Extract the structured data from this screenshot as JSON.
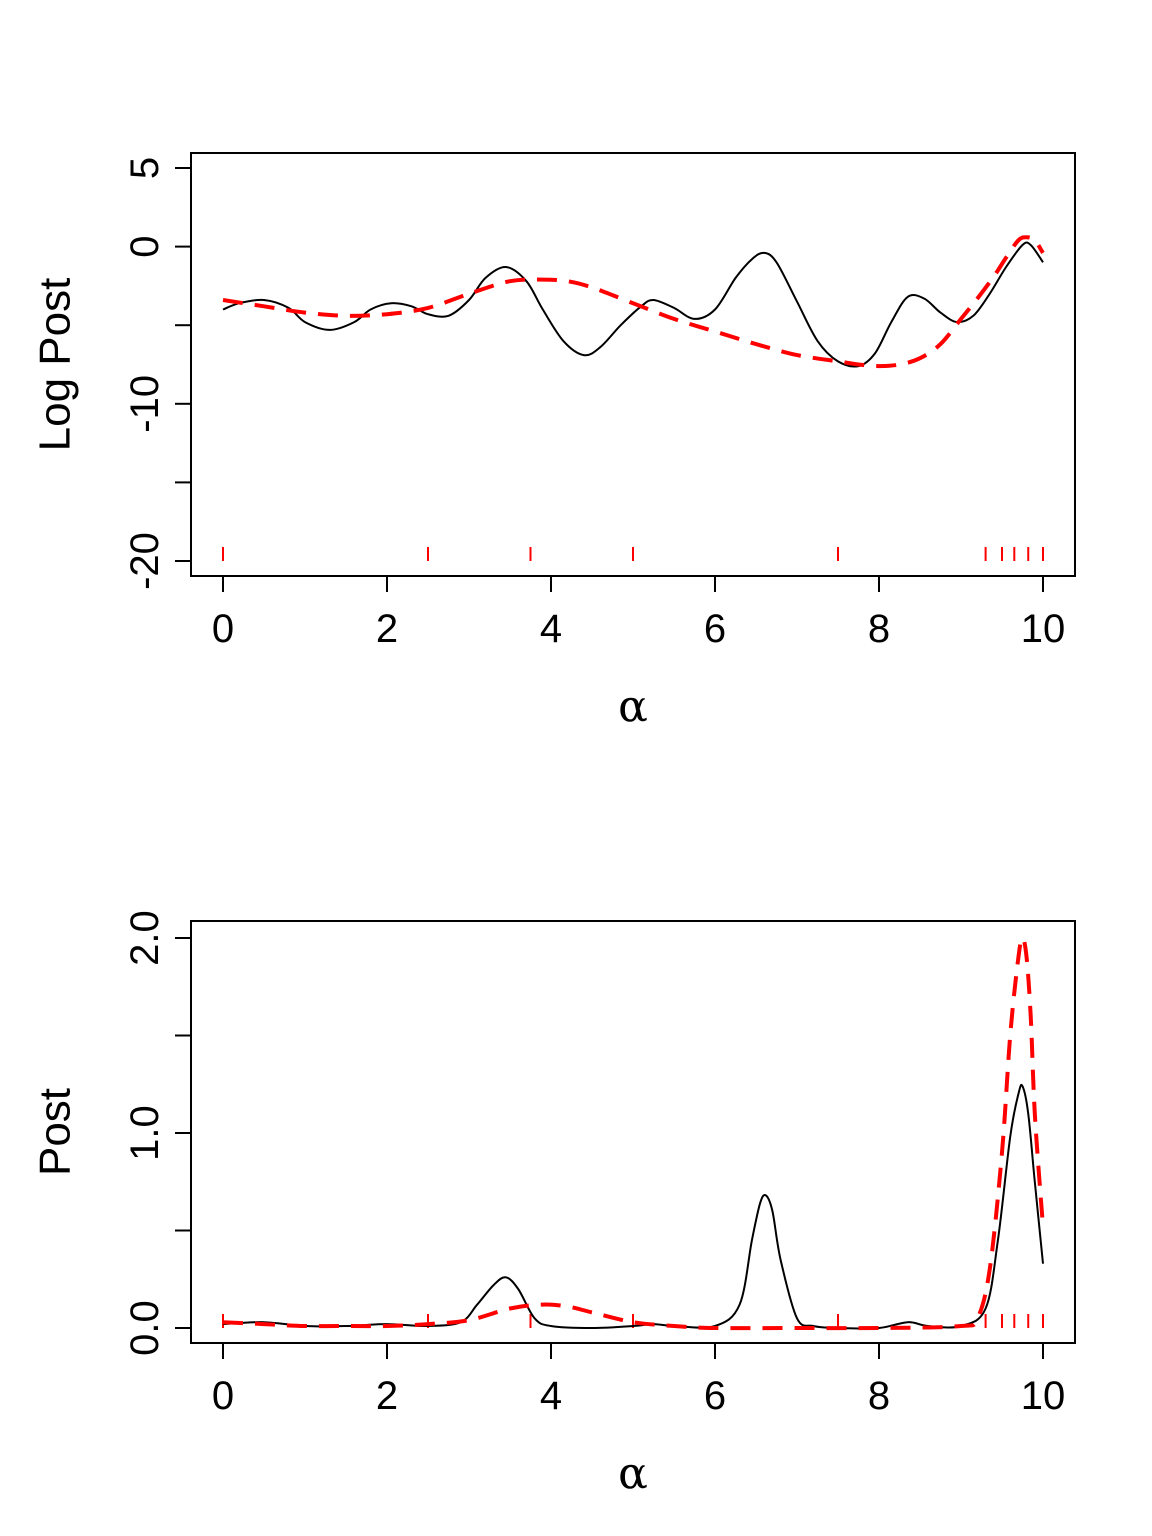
{
  "chart_data": [
    {
      "type": "line",
      "xlabel": "α",
      "ylabel": "Log Post",
      "xlim": [
        0,
        10
      ],
      "ylim": [
        -20,
        5
      ],
      "xticks": [
        "0",
        "2",
        "4",
        "6",
        "8",
        "10"
      ],
      "yticks": [
        "-20",
        "-10",
        "0",
        "5"
      ],
      "ytick_values": [
        -20,
        -15,
        -10,
        -5,
        0,
        5
      ],
      "rug": [
        0,
        2.5,
        3.75,
        5,
        7.5,
        9.3,
        9.5,
        9.65,
        9.82,
        10
      ],
      "rug_color": "#ff0000",
      "series": [
        {
          "style": "solid",
          "color": "#000000",
          "x": [
            0,
            0.2,
            0.5,
            0.8,
            1.0,
            1.3,
            1.6,
            1.8,
            2.05,
            2.3,
            2.5,
            2.75,
            3.0,
            3.2,
            3.45,
            3.7,
            3.9,
            4.15,
            4.4,
            4.6,
            4.85,
            5.1,
            5.25,
            5.5,
            5.75,
            6.0,
            6.25,
            6.45,
            6.6,
            6.75,
            7.0,
            7.25,
            7.5,
            7.75,
            7.95,
            8.15,
            8.35,
            8.55,
            8.75,
            8.95,
            9.15,
            9.35,
            9.55,
            9.75,
            9.85,
            10.0
          ],
          "y": [
            -4.0,
            -3.6,
            -3.4,
            -3.9,
            -4.8,
            -5.3,
            -4.8,
            -4.0,
            -3.6,
            -3.8,
            -4.3,
            -4.4,
            -3.4,
            -2.0,
            -1.3,
            -2.2,
            -4.0,
            -6.0,
            -6.9,
            -6.4,
            -5.0,
            -3.8,
            -3.4,
            -3.9,
            -4.6,
            -4.0,
            -2.0,
            -0.8,
            -0.4,
            -1.0,
            -3.5,
            -6.0,
            -7.3,
            -7.6,
            -6.8,
            -4.8,
            -3.2,
            -3.3,
            -4.2,
            -4.8,
            -4.4,
            -3.0,
            -1.3,
            0.1,
            0.1,
            -1.0
          ]
        },
        {
          "style": "dashed",
          "color": "#ff0000",
          "x": [
            0,
            0.5,
            1.0,
            1.5,
            2.0,
            2.5,
            3.0,
            3.5,
            3.9,
            4.2,
            4.5,
            5.0,
            5.5,
            6.0,
            6.5,
            7.0,
            7.5,
            7.75,
            8.0,
            8.25,
            8.5,
            8.75,
            9.0,
            9.2,
            9.4,
            9.55,
            9.7,
            9.8,
            9.9,
            10.0
          ],
          "y": [
            -3.4,
            -3.8,
            -4.2,
            -4.4,
            -4.3,
            -3.9,
            -3.0,
            -2.2,
            -2.1,
            -2.2,
            -2.6,
            -3.6,
            -4.6,
            -5.4,
            -6.2,
            -6.9,
            -7.3,
            -7.5,
            -7.6,
            -7.5,
            -7.1,
            -6.2,
            -4.6,
            -3.3,
            -1.9,
            -0.7,
            0.4,
            0.6,
            0.4,
            -0.4
          ]
        }
      ]
    },
    {
      "type": "line",
      "xlabel": "α",
      "ylabel": "Post",
      "xlim": [
        0,
        10
      ],
      "ylim": [
        0,
        2.0
      ],
      "xticks": [
        "0",
        "2",
        "4",
        "6",
        "8",
        "10"
      ],
      "yticks": [
        "0.0",
        "1.0",
        "2.0"
      ],
      "ytick_values": [
        0.0,
        0.5,
        1.0,
        1.5,
        2.0
      ],
      "rug": [
        0,
        2.5,
        3.75,
        5,
        7.5,
        9.3,
        9.5,
        9.65,
        9.82,
        10
      ],
      "rug_color": "#ff0000",
      "series": [
        {
          "style": "solid",
          "color": "#000000",
          "x": [
            0,
            0.5,
            1.0,
            1.5,
            2.0,
            2.5,
            2.9,
            3.1,
            3.3,
            3.45,
            3.6,
            3.8,
            4.0,
            4.5,
            5.0,
            5.25,
            5.5,
            6.0,
            6.3,
            6.45,
            6.55,
            6.62,
            6.7,
            6.8,
            7.0,
            7.2,
            7.5,
            8.0,
            8.35,
            8.6,
            9.0,
            9.3,
            9.45,
            9.6,
            9.7,
            9.75,
            9.82,
            9.9,
            10.0
          ],
          "y": [
            0.02,
            0.03,
            0.01,
            0.01,
            0.02,
            0.01,
            0.03,
            0.12,
            0.22,
            0.26,
            0.2,
            0.05,
            0.01,
            0.0,
            0.01,
            0.02,
            0.01,
            0.01,
            0.12,
            0.45,
            0.64,
            0.68,
            0.6,
            0.35,
            0.05,
            0.01,
            0.0,
            0.0,
            0.03,
            0.01,
            0.01,
            0.1,
            0.45,
            0.98,
            1.2,
            1.24,
            1.1,
            0.75,
            0.33
          ]
        },
        {
          "style": "dashed",
          "color": "#ff0000",
          "x": [
            0,
            0.5,
            1.0,
            1.5,
            2.0,
            2.5,
            3.0,
            3.5,
            3.9,
            4.2,
            4.5,
            5.0,
            5.5,
            6.0,
            7.0,
            8.0,
            9.0,
            9.2,
            9.35,
            9.5,
            9.6,
            9.7,
            9.75,
            9.8,
            9.85,
            9.9,
            10.0
          ],
          "y": [
            0.03,
            0.02,
            0.01,
            0.01,
            0.01,
            0.02,
            0.04,
            0.1,
            0.12,
            0.11,
            0.08,
            0.03,
            0.01,
            0.0,
            0.0,
            0.0,
            0.01,
            0.05,
            0.3,
            0.9,
            1.5,
            1.9,
            2.0,
            1.9,
            1.6,
            1.1,
            0.52
          ]
        }
      ]
    }
  ]
}
